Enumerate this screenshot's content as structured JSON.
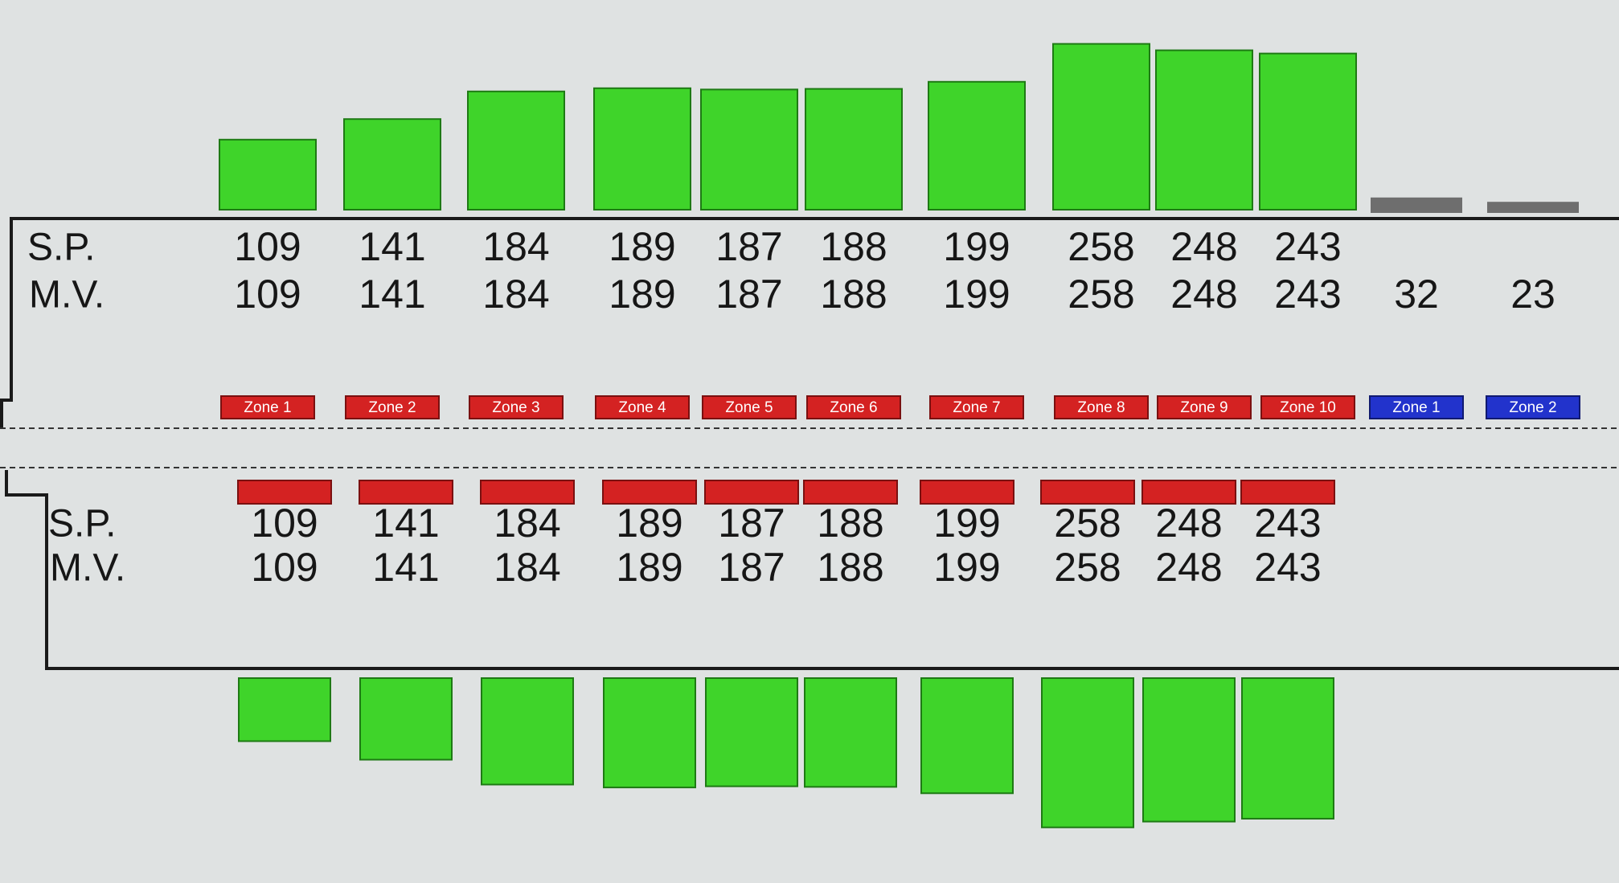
{
  "top": {
    "sp_label": "S.P.",
    "mv_label": "M.V.",
    "zones": [
      {
        "label": "Zone 1",
        "sp": 109,
        "mv": 109
      },
      {
        "label": "Zone 2",
        "sp": 141,
        "mv": 141
      },
      {
        "label": "Zone 3",
        "sp": 184,
        "mv": 184
      },
      {
        "label": "Zone 4",
        "sp": 189,
        "mv": 189
      },
      {
        "label": "Zone 5",
        "sp": 187,
        "mv": 187
      },
      {
        "label": "Zone 6",
        "sp": 188,
        "mv": 188
      },
      {
        "label": "Zone 7",
        "sp": 199,
        "mv": 199
      },
      {
        "label": "Zone 8",
        "sp": 258,
        "mv": 258
      },
      {
        "label": "Zone 9",
        "sp": 248,
        "mv": 248
      },
      {
        "label": "Zone 10",
        "sp": 243,
        "mv": 243
      }
    ],
    "extra_zones": [
      {
        "label": "Zone 1",
        "mv": 32
      },
      {
        "label": "Zone 2",
        "mv": 23
      }
    ]
  },
  "bottom": {
    "sp_label": "S.P.",
    "mv_label": "M.V.",
    "zones": [
      {
        "sp": 109,
        "mv": 109
      },
      {
        "sp": 141,
        "mv": 141
      },
      {
        "sp": 184,
        "mv": 184
      },
      {
        "sp": 189,
        "mv": 189
      },
      {
        "sp": 187,
        "mv": 187
      },
      {
        "sp": 188,
        "mv": 188
      },
      {
        "sp": 199,
        "mv": 199
      },
      {
        "sp": 258,
        "mv": 258
      },
      {
        "sp": 248,
        "mv": 248
      },
      {
        "sp": 243,
        "mv": 243
      }
    ]
  }
}
